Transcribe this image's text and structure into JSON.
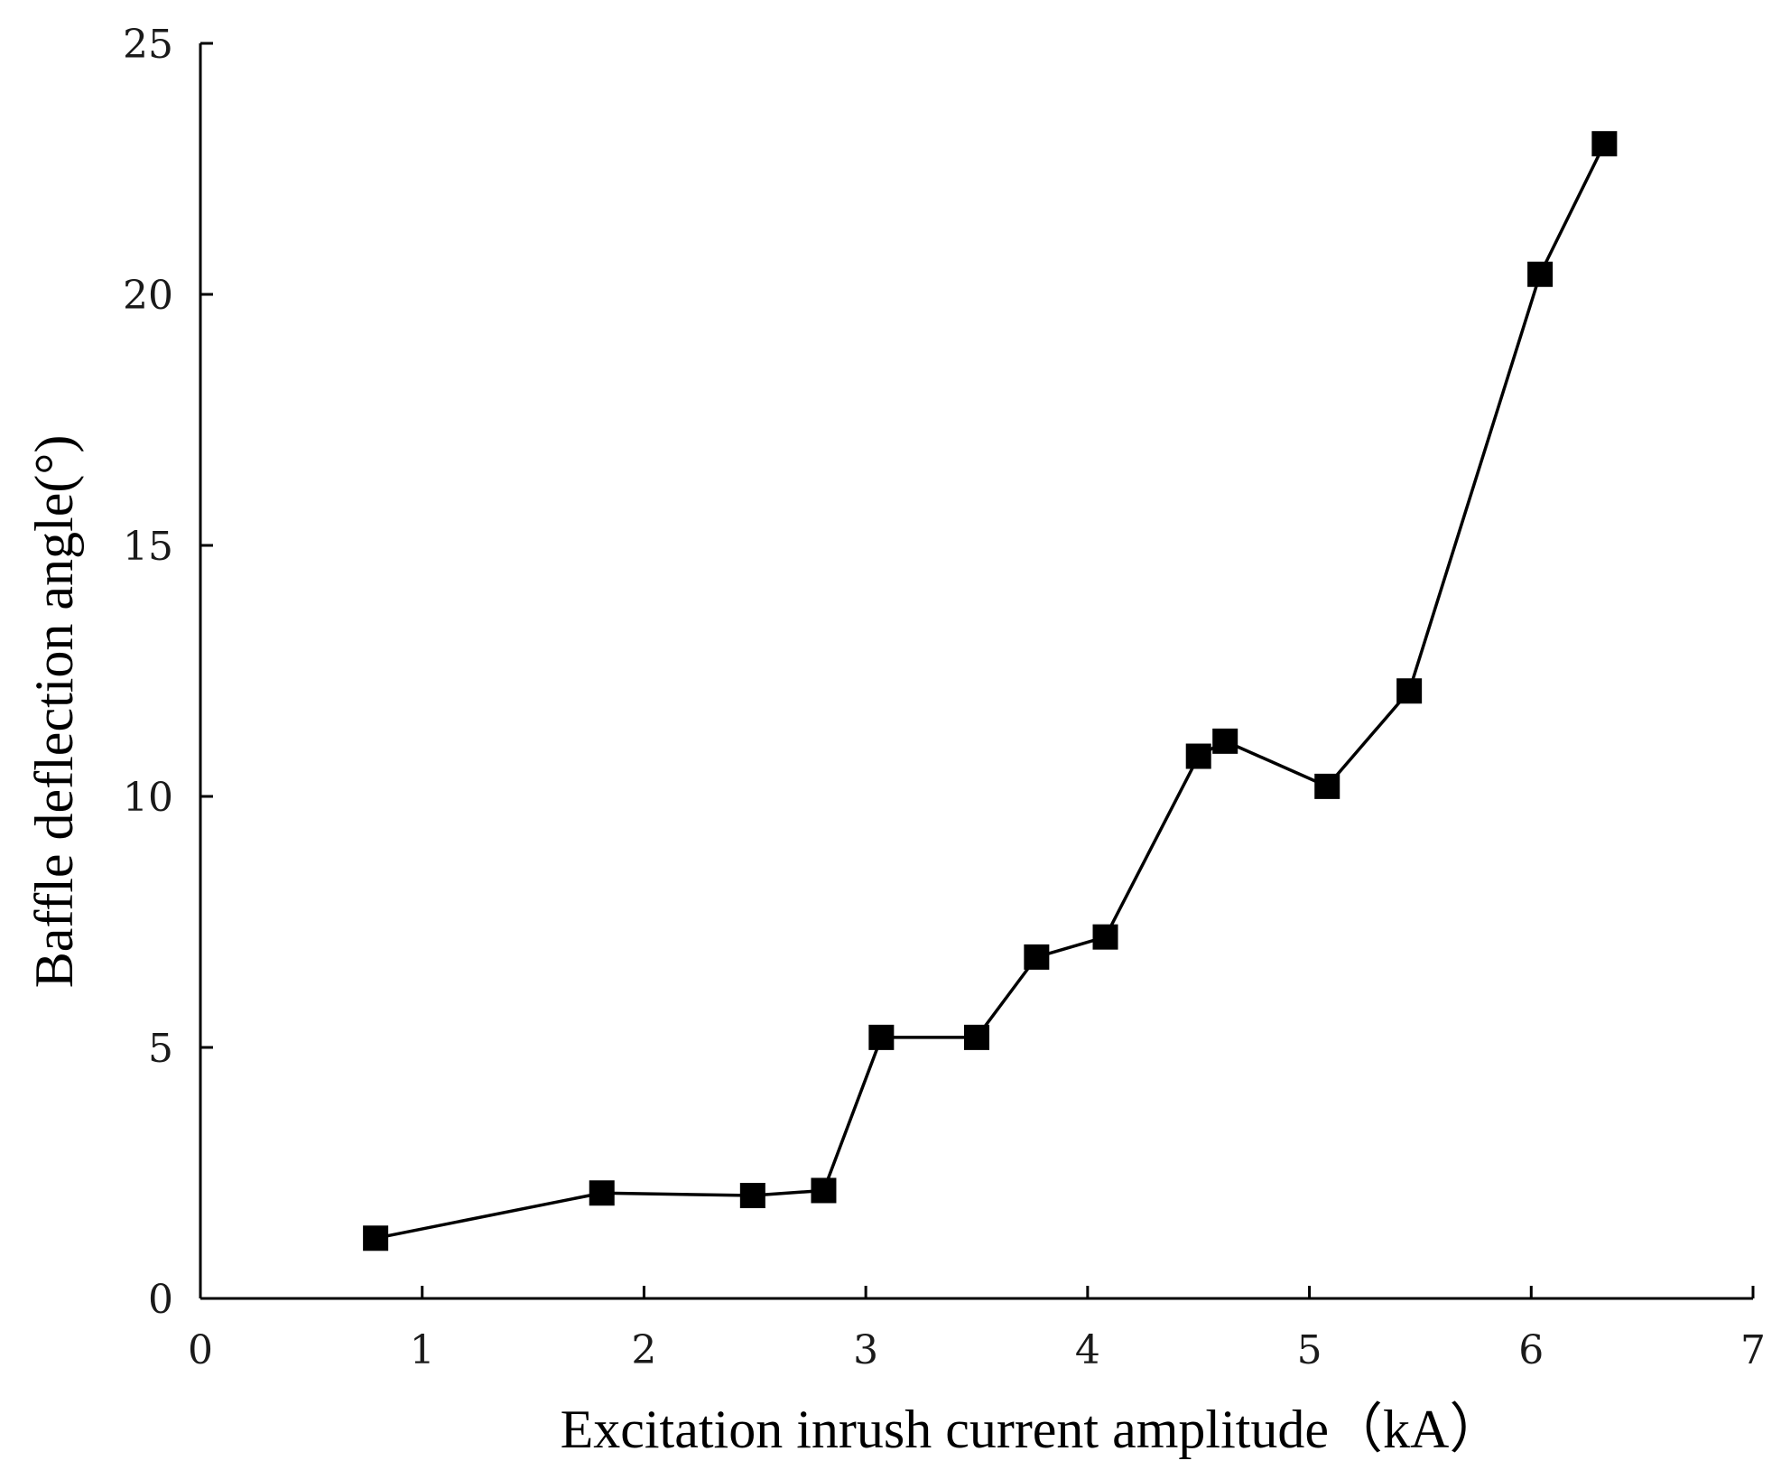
{
  "chart_data": {
    "type": "line",
    "title": "",
    "xlabel": "Excitation inrush current amplitude（kA）",
    "ylabel": "Baffle deflection angle(°)",
    "xlim": [
      0,
      7
    ],
    "ylim": [
      0,
      25
    ],
    "x_ticks": [
      0,
      1,
      2,
      3,
      4,
      5,
      6,
      7
    ],
    "y_ticks": [
      0,
      5,
      10,
      15,
      20,
      25
    ],
    "x_tick_labels": [
      "0",
      "1",
      "2",
      "3",
      "4",
      "5",
      "6",
      "7"
    ],
    "y_tick_labels": [
      "0",
      "5",
      "10",
      "15",
      "20",
      "25"
    ],
    "grid": false,
    "series": [
      {
        "name": "Baffle deflection angle",
        "marker": "square",
        "color": "#000000",
        "x": [
          0.79,
          1.81,
          2.49,
          2.81,
          3.07,
          3.5,
          3.77,
          4.08,
          4.5,
          4.62,
          5.08,
          5.45,
          6.04,
          6.33
        ],
        "y": [
          1.2,
          2.1,
          2.05,
          2.15,
          5.2,
          5.2,
          6.8,
          7.2,
          10.8,
          11.1,
          10.2,
          12.1,
          20.4,
          23.0
        ]
      }
    ]
  }
}
